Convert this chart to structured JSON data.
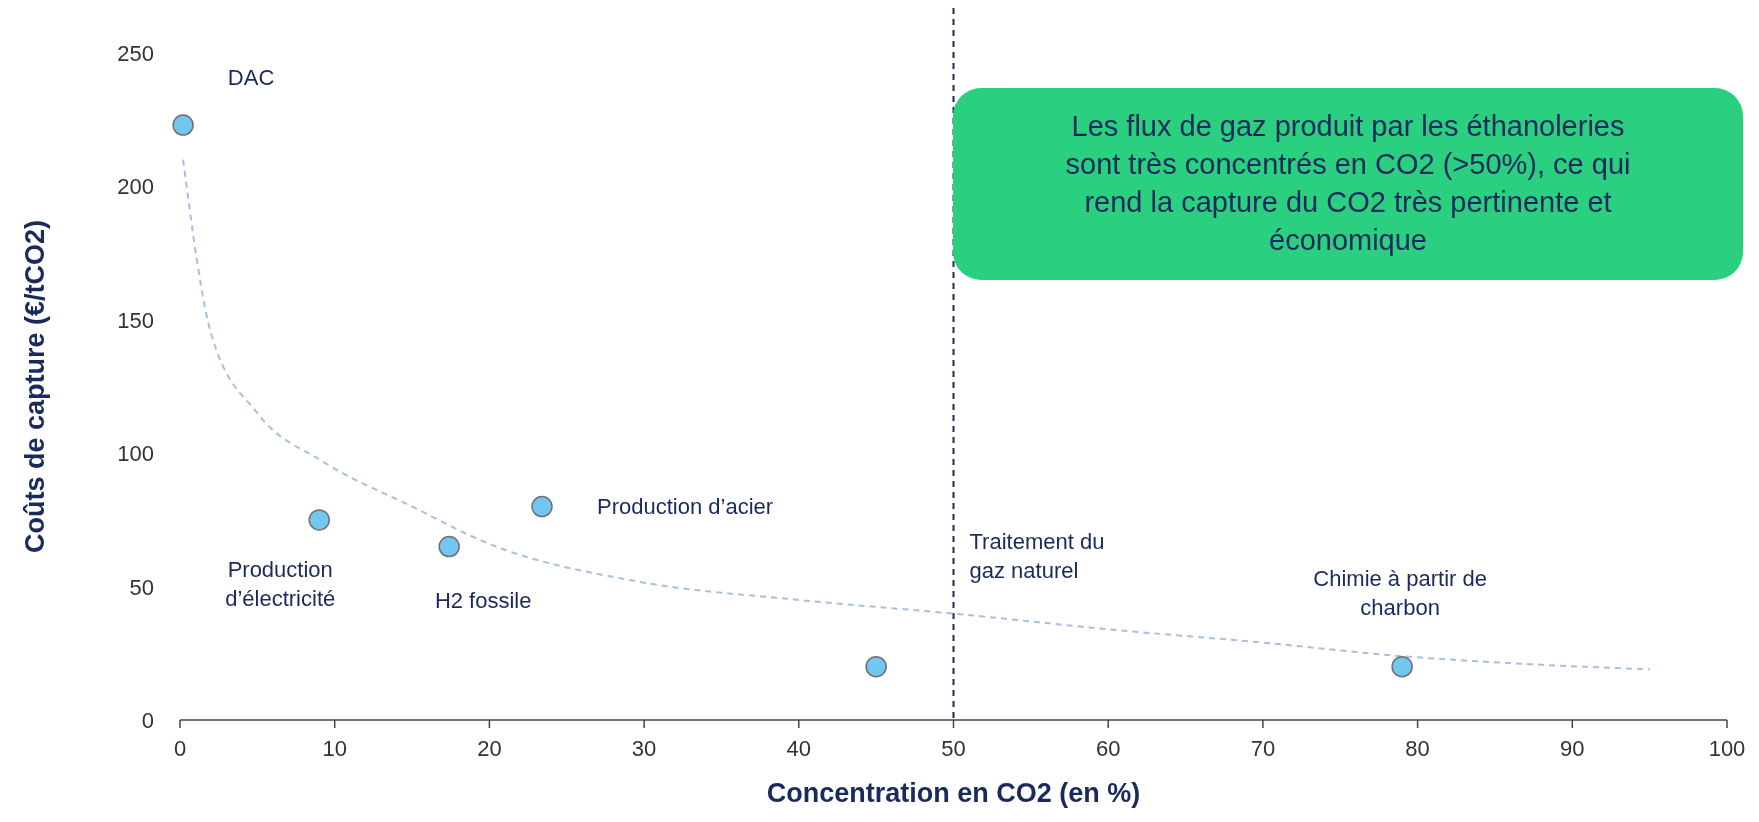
{
  "chart_data": {
    "type": "scatter",
    "xlabel": "Concentration en CO2 (en %)",
    "ylabel": "Coûts de capture (€/tCO2)",
    "xlim": [
      0,
      100
    ],
    "xticks": [
      0,
      10,
      20,
      30,
      40,
      50,
      60,
      70,
      80,
      90,
      100
    ],
    "ylim": [
      0,
      250
    ],
    "yticks": [
      0,
      50,
      100,
      150,
      200,
      250
    ],
    "marker": "circle",
    "grid": false,
    "series": [
      {
        "type": "line",
        "color": "#a9bfe0",
        "line_style": "dashed",
        "marker": "none",
        "x": [
          0.2,
          2,
          5,
          9.2,
          15,
          20,
          29.5,
          40,
          49.8,
          60,
          70,
          78.8,
          87,
          95
        ],
        "values": [
          210,
          145,
          115,
          97,
          80,
          66,
          52,
          45,
          40,
          34,
          29,
          24,
          21,
          19
        ]
      },
      {
        "color": "#72c7f1",
        "x": [
          0.2,
          9,
          17.4,
          23.4,
          45,
          79
        ],
        "values": [
          223,
          75,
          65,
          80,
          20,
          20
        ]
      }
    ],
    "ref_lines": [
      {
        "axis": "x",
        "value": 50,
        "color": "#1b2a5c",
        "line_style": "dashed"
      }
    ],
    "annotations": [
      {
        "text": "DAC",
        "x": 0.2,
        "y": 223
      },
      {
        "text": "Production\nd’électricité",
        "x": 9,
        "y": 75
      },
      {
        "text": "H2 fossile",
        "x": 17.4,
        "y": 65
      },
      {
        "text": "Production d’acier",
        "x": 23.4,
        "y": 80
      },
      {
        "text": "Traitement du\ngaz naturel",
        "x": 50,
        "y": 62
      },
      {
        "text": "Chimie à partir de\ncharbon",
        "x": 79,
        "y": 20
      },
      "Les flux de gaz produit par les éthanoleries sont très concentrés en CO2 (>50%), ce qui rend la capture du CO2 très pertinente et économique"
    ]
  }
}
